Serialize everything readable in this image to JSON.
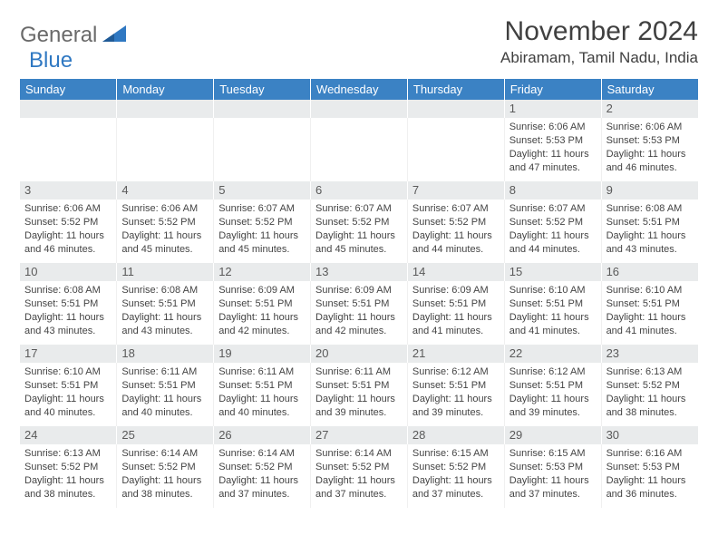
{
  "logo": {
    "word1": "General",
    "word2": "Blue"
  },
  "title": "November 2024",
  "location": "Abiramam, Tamil Nadu, India",
  "colors": {
    "header_bg": "#3b82c4",
    "header_text": "#ffffff",
    "daynum_bg": "#e9ebec",
    "daynum_text": "#5a5a5a",
    "cell_text": "#444444",
    "logo_gray": "#6a6a6a",
    "logo_blue": "#2f78c2",
    "title_color": "#404040",
    "page_bg": "#ffffff"
  },
  "typography": {
    "title_fontsize": 30,
    "location_fontsize": 17,
    "header_fontsize": 13,
    "daynum_fontsize": 13,
    "cell_fontsize": 11
  },
  "days_of_week": [
    "Sunday",
    "Monday",
    "Tuesday",
    "Wednesday",
    "Thursday",
    "Friday",
    "Saturday"
  ],
  "first_weekday_index": 5,
  "weeks": [
    [
      null,
      null,
      null,
      null,
      null,
      {
        "n": "1",
        "sr": "6:06 AM",
        "ss": "5:53 PM",
        "dl": "11 hours and 47 minutes."
      },
      {
        "n": "2",
        "sr": "6:06 AM",
        "ss": "5:53 PM",
        "dl": "11 hours and 46 minutes."
      }
    ],
    [
      {
        "n": "3",
        "sr": "6:06 AM",
        "ss": "5:52 PM",
        "dl": "11 hours and 46 minutes."
      },
      {
        "n": "4",
        "sr": "6:06 AM",
        "ss": "5:52 PM",
        "dl": "11 hours and 45 minutes."
      },
      {
        "n": "5",
        "sr": "6:07 AM",
        "ss": "5:52 PM",
        "dl": "11 hours and 45 minutes."
      },
      {
        "n": "6",
        "sr": "6:07 AM",
        "ss": "5:52 PM",
        "dl": "11 hours and 45 minutes."
      },
      {
        "n": "7",
        "sr": "6:07 AM",
        "ss": "5:52 PM",
        "dl": "11 hours and 44 minutes."
      },
      {
        "n": "8",
        "sr": "6:07 AM",
        "ss": "5:52 PM",
        "dl": "11 hours and 44 minutes."
      },
      {
        "n": "9",
        "sr": "6:08 AM",
        "ss": "5:51 PM",
        "dl": "11 hours and 43 minutes."
      }
    ],
    [
      {
        "n": "10",
        "sr": "6:08 AM",
        "ss": "5:51 PM",
        "dl": "11 hours and 43 minutes."
      },
      {
        "n": "11",
        "sr": "6:08 AM",
        "ss": "5:51 PM",
        "dl": "11 hours and 43 minutes."
      },
      {
        "n": "12",
        "sr": "6:09 AM",
        "ss": "5:51 PM",
        "dl": "11 hours and 42 minutes."
      },
      {
        "n": "13",
        "sr": "6:09 AM",
        "ss": "5:51 PM",
        "dl": "11 hours and 42 minutes."
      },
      {
        "n": "14",
        "sr": "6:09 AM",
        "ss": "5:51 PM",
        "dl": "11 hours and 41 minutes."
      },
      {
        "n": "15",
        "sr": "6:10 AM",
        "ss": "5:51 PM",
        "dl": "11 hours and 41 minutes."
      },
      {
        "n": "16",
        "sr": "6:10 AM",
        "ss": "5:51 PM",
        "dl": "11 hours and 41 minutes."
      }
    ],
    [
      {
        "n": "17",
        "sr": "6:10 AM",
        "ss": "5:51 PM",
        "dl": "11 hours and 40 minutes."
      },
      {
        "n": "18",
        "sr": "6:11 AM",
        "ss": "5:51 PM",
        "dl": "11 hours and 40 minutes."
      },
      {
        "n": "19",
        "sr": "6:11 AM",
        "ss": "5:51 PM",
        "dl": "11 hours and 40 minutes."
      },
      {
        "n": "20",
        "sr": "6:11 AM",
        "ss": "5:51 PM",
        "dl": "11 hours and 39 minutes."
      },
      {
        "n": "21",
        "sr": "6:12 AM",
        "ss": "5:51 PM",
        "dl": "11 hours and 39 minutes."
      },
      {
        "n": "22",
        "sr": "6:12 AM",
        "ss": "5:51 PM",
        "dl": "11 hours and 39 minutes."
      },
      {
        "n": "23",
        "sr": "6:13 AM",
        "ss": "5:52 PM",
        "dl": "11 hours and 38 minutes."
      }
    ],
    [
      {
        "n": "24",
        "sr": "6:13 AM",
        "ss": "5:52 PM",
        "dl": "11 hours and 38 minutes."
      },
      {
        "n": "25",
        "sr": "6:14 AM",
        "ss": "5:52 PM",
        "dl": "11 hours and 38 minutes."
      },
      {
        "n": "26",
        "sr": "6:14 AM",
        "ss": "5:52 PM",
        "dl": "11 hours and 37 minutes."
      },
      {
        "n": "27",
        "sr": "6:14 AM",
        "ss": "5:52 PM",
        "dl": "11 hours and 37 minutes."
      },
      {
        "n": "28",
        "sr": "6:15 AM",
        "ss": "5:52 PM",
        "dl": "11 hours and 37 minutes."
      },
      {
        "n": "29",
        "sr": "6:15 AM",
        "ss": "5:53 PM",
        "dl": "11 hours and 37 minutes."
      },
      {
        "n": "30",
        "sr": "6:16 AM",
        "ss": "5:53 PM",
        "dl": "11 hours and 36 minutes."
      }
    ]
  ],
  "labels": {
    "sunrise": "Sunrise:",
    "sunset": "Sunset:",
    "daylight": "Daylight:"
  }
}
